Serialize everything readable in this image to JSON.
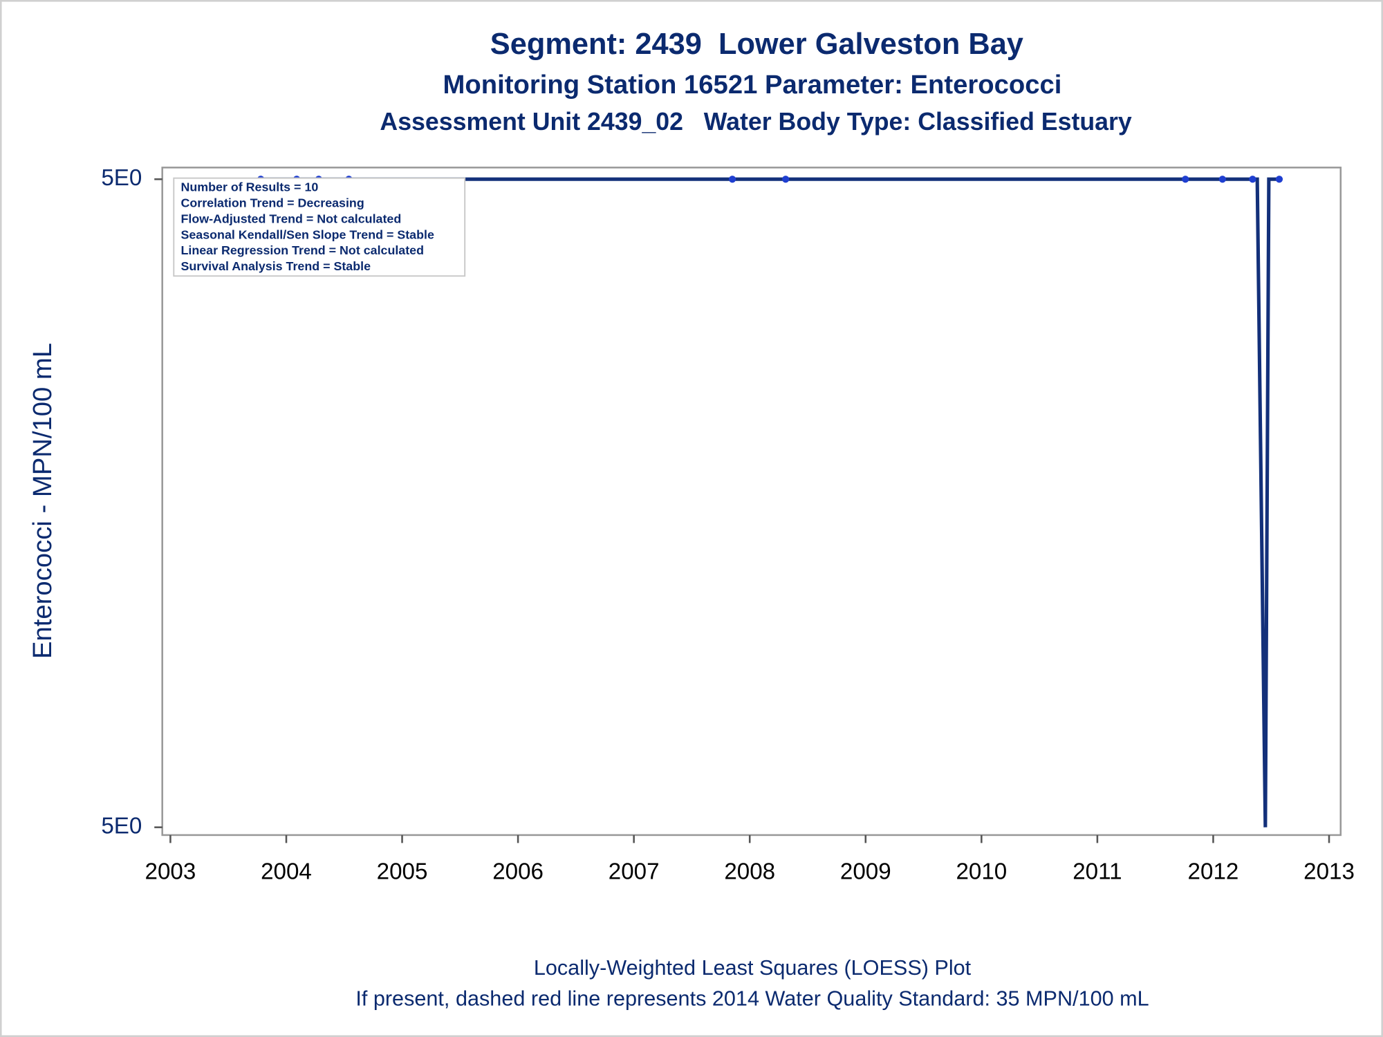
{
  "chart_data": {
    "type": "line",
    "titles": [
      "Segment: 2439  Lower Galveston Bay",
      "Monitoring Station 16521 Parameter: Enterococci",
      "Assessment Unit 2439_02   Water Body Type: Classified Estuary"
    ],
    "y_label": "Enterococci - MPN/100 mL",
    "footnotes": [
      "Locally-Weighted Least Squares (LOESS) Plot",
      "If present, dashed red line represents 2014 Water Quality Standard: 35 MPN/100 mL"
    ],
    "stats_box": [
      "Number of Results = 10",
      "Correlation Trend = Decreasing",
      "Flow-Adjusted Trend = Not calculated",
      "Seasonal Kendall/Sen Slope Trend = Stable",
      "Linear Regression Trend = Not calculated",
      "Survival Analysis Trend = Stable"
    ],
    "log_y": true,
    "xlim": [
      2002.93,
      2013.1
    ],
    "xticks": [
      2003,
      2004,
      2005,
      2006,
      2007,
      2008,
      2009,
      2010,
      2011,
      2012,
      2013
    ],
    "ylim": [
      4.9998988,
      5.0000018
    ],
    "yticks": [
      {
        "value": 4.9999,
        "label": "5E0"
      },
      {
        "value": 5,
        "label": "5E0"
      }
    ],
    "points": {
      "color": "#1f3fd0",
      "x": [
        2003.78,
        2004.09,
        2004.28,
        2004.54,
        2007.85,
        2008.31,
        2011.76,
        2012.08,
        2012.34,
        2012.57
      ],
      "values": [
        5,
        5,
        5,
        5,
        5,
        5,
        5,
        5,
        5,
        5
      ]
    },
    "loess": {
      "color": "#13307a",
      "x": [
        2003.78,
        2012.38,
        2012.45,
        2012.48,
        2012.57
      ],
      "values": [
        5,
        5,
        4.9999,
        5,
        5
      ]
    }
  }
}
